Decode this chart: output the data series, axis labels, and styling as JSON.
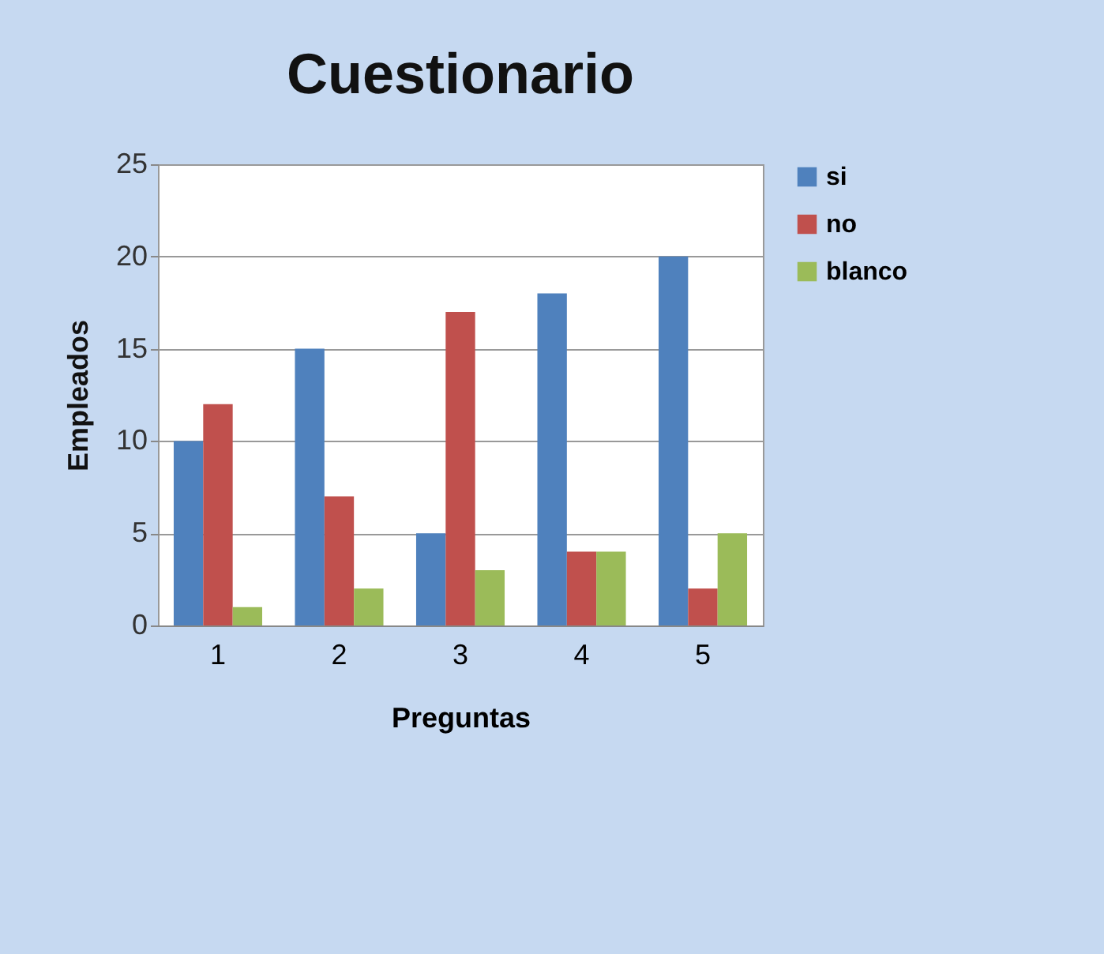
{
  "chart_data": {
    "type": "bar",
    "title": "Cuestionario",
    "xlabel": "Preguntas",
    "ylabel": "Empleados",
    "categories": [
      "1",
      "2",
      "3",
      "4",
      "5"
    ],
    "series": [
      {
        "name": "si",
        "color": "#4f81bd",
        "values": [
          10,
          15,
          5,
          18,
          20
        ]
      },
      {
        "name": "no",
        "color": "#c0504d",
        "values": [
          12,
          7,
          17,
          4,
          2
        ]
      },
      {
        "name": "blanco",
        "color": "#9bbb59",
        "values": [
          1,
          2,
          3,
          4,
          5
        ]
      }
    ],
    "ylim": [
      0,
      25
    ],
    "yticks": [
      0,
      5,
      10,
      15,
      20,
      25
    ],
    "grid": "y",
    "legend": "right"
  }
}
